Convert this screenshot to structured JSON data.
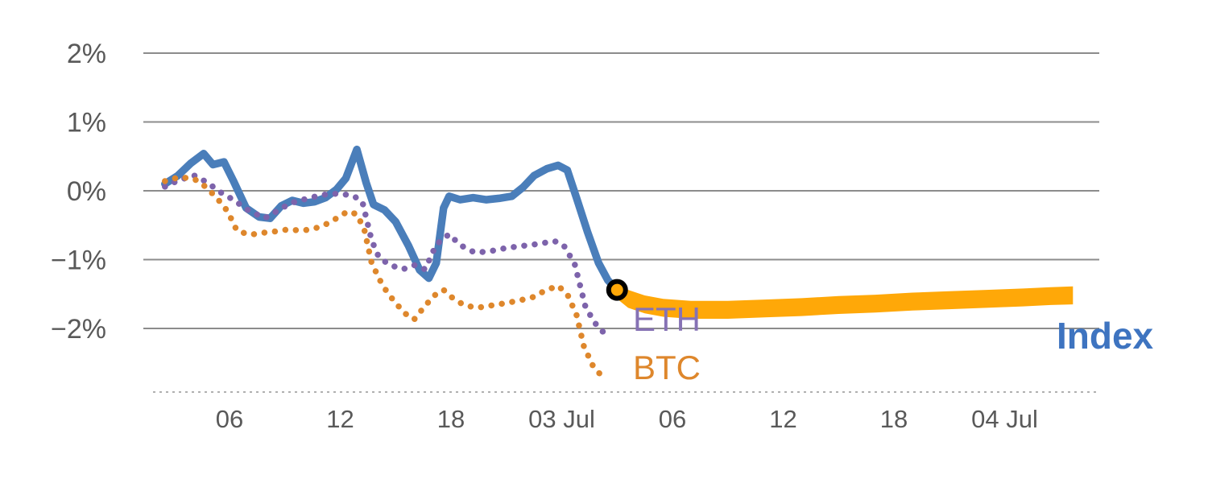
{
  "labels": {
    "eth": "ETH",
    "btc": "BTC",
    "index": "Index"
  },
  "colors": {
    "index_line": "#4a7eba",
    "index_label": "#3e74c0",
    "eth": "#7d63ab",
    "eth_label": "#8672b4",
    "btc": "#de872c",
    "forecast_band": "#ffa808",
    "grid": "#8c8c8c",
    "axis_text": "#595959",
    "bottom_axis": "#b0b0b0",
    "marker_stroke": "#000000"
  },
  "chart_data": {
    "type": "line",
    "title": "",
    "xlabel": "",
    "ylabel": "",
    "x_axis": {
      "unit": "hours",
      "range": [
        1.8,
        52.5
      ],
      "ticks": [
        {
          "value": 6,
          "label": "06"
        },
        {
          "value": 12,
          "label": "12"
        },
        {
          "value": 18,
          "label": "18"
        },
        {
          "value": 24,
          "label": "03 Jul"
        },
        {
          "value": 30,
          "label": "06"
        },
        {
          "value": 36,
          "label": "12"
        },
        {
          "value": 42,
          "label": "18"
        },
        {
          "value": 48,
          "label": "04 Jul"
        }
      ]
    },
    "y_axis": {
      "unit": "percent",
      "range": [
        -2.92,
        2.3
      ],
      "ticks": [
        {
          "value": 2,
          "label": "2%"
        },
        {
          "value": 1,
          "label": "1%"
        },
        {
          "value": 0,
          "label": "0%"
        },
        {
          "value": -1,
          "label": "−1%"
        },
        {
          "value": -2,
          "label": "−2%"
        }
      ]
    },
    "series": [
      {
        "name": "Index",
        "color": "#4a7eba",
        "style": "solid",
        "width": 9.5,
        "points": [
          [
            2.5,
            0.1
          ],
          [
            3.2,
            0.22
          ],
          [
            3.9,
            0.4
          ],
          [
            4.6,
            0.54
          ],
          [
            5.1,
            0.38
          ],
          [
            5.7,
            0.42
          ],
          [
            6.2,
            0.15
          ],
          [
            6.9,
            -0.25
          ],
          [
            7.6,
            -0.38
          ],
          [
            8.2,
            -0.4
          ],
          [
            8.8,
            -0.22
          ],
          [
            9.4,
            -0.14
          ],
          [
            10.0,
            -0.18
          ],
          [
            10.6,
            -0.16
          ],
          [
            11.2,
            -0.1
          ],
          [
            11.8,
            0.02
          ],
          [
            12.3,
            0.18
          ],
          [
            12.9,
            0.6
          ],
          [
            13.4,
            0.12
          ],
          [
            13.8,
            -0.2
          ],
          [
            14.4,
            -0.28
          ],
          [
            15.0,
            -0.45
          ],
          [
            15.7,
            -0.8
          ],
          [
            16.3,
            -1.15
          ],
          [
            16.8,
            -1.27
          ],
          [
            17.2,
            -1.05
          ],
          [
            17.6,
            -0.25
          ],
          [
            17.9,
            -0.08
          ],
          [
            18.5,
            -0.13
          ],
          [
            19.2,
            -0.1
          ],
          [
            19.9,
            -0.13
          ],
          [
            20.6,
            -0.11
          ],
          [
            21.3,
            -0.08
          ],
          [
            21.9,
            0.05
          ],
          [
            22.5,
            0.22
          ],
          [
            23.2,
            0.32
          ],
          [
            23.8,
            0.37
          ],
          [
            24.3,
            0.3
          ],
          [
            24.8,
            -0.1
          ],
          [
            25.4,
            -0.6
          ],
          [
            26.0,
            -1.05
          ],
          [
            26.5,
            -1.3
          ],
          [
            27.0,
            -1.44
          ]
        ]
      },
      {
        "name": "ETH",
        "color": "#7d63ab",
        "style": "dotted",
        "width": 7.5,
        "points": [
          [
            2.5,
            0.06
          ],
          [
            3.3,
            0.16
          ],
          [
            4.1,
            0.22
          ],
          [
            4.8,
            0.12
          ],
          [
            5.5,
            -0.02
          ],
          [
            6.2,
            -0.13
          ],
          [
            7.0,
            -0.28
          ],
          [
            7.9,
            -0.4
          ],
          [
            8.6,
            -0.29
          ],
          [
            9.3,
            -0.18
          ],
          [
            10.1,
            -0.12
          ],
          [
            11.0,
            -0.06
          ],
          [
            11.9,
            -0.04
          ],
          [
            12.7,
            -0.07
          ],
          [
            13.2,
            -0.16
          ],
          [
            13.7,
            -0.72
          ],
          [
            14.1,
            -0.97
          ],
          [
            14.7,
            -1.08
          ],
          [
            15.4,
            -1.14
          ],
          [
            16.0,
            -1.08
          ],
          [
            16.6,
            -1.14
          ],
          [
            17.2,
            -0.78
          ],
          [
            17.9,
            -0.63
          ],
          [
            18.5,
            -0.79
          ],
          [
            19.3,
            -0.9
          ],
          [
            20.1,
            -0.88
          ],
          [
            21.0,
            -0.83
          ],
          [
            21.9,
            -0.8
          ],
          [
            22.8,
            -0.77
          ],
          [
            23.6,
            -0.73
          ],
          [
            24.1,
            -0.79
          ],
          [
            24.7,
            -1.06
          ],
          [
            25.3,
            -1.7
          ],
          [
            26.0,
            -2.0
          ],
          [
            26.5,
            -2.1
          ]
        ]
      },
      {
        "name": "BTC",
        "color": "#de872c",
        "style": "dotted",
        "width": 7.5,
        "points": [
          [
            2.5,
            0.14
          ],
          [
            3.3,
            0.2
          ],
          [
            4.1,
            0.17
          ],
          [
            4.7,
            0.06
          ],
          [
            5.3,
            -0.1
          ],
          [
            5.9,
            -0.3
          ],
          [
            6.4,
            -0.58
          ],
          [
            7.1,
            -0.64
          ],
          [
            7.8,
            -0.61
          ],
          [
            8.5,
            -0.59
          ],
          [
            9.2,
            -0.56
          ],
          [
            9.9,
            -0.58
          ],
          [
            10.6,
            -0.55
          ],
          [
            11.2,
            -0.49
          ],
          [
            11.8,
            -0.4
          ],
          [
            12.4,
            -0.3
          ],
          [
            12.9,
            -0.34
          ],
          [
            13.3,
            -0.56
          ],
          [
            13.7,
            -1.05
          ],
          [
            14.3,
            -1.38
          ],
          [
            14.9,
            -1.6
          ],
          [
            15.5,
            -1.78
          ],
          [
            16.0,
            -1.87
          ],
          [
            16.6,
            -1.67
          ],
          [
            17.1,
            -1.52
          ],
          [
            17.6,
            -1.44
          ],
          [
            18.1,
            -1.56
          ],
          [
            18.7,
            -1.66
          ],
          [
            19.4,
            -1.7
          ],
          [
            20.1,
            -1.67
          ],
          [
            20.8,
            -1.64
          ],
          [
            21.6,
            -1.6
          ],
          [
            22.4,
            -1.55
          ],
          [
            23.1,
            -1.45
          ],
          [
            23.8,
            -1.38
          ],
          [
            24.3,
            -1.5
          ],
          [
            24.8,
            -1.8
          ],
          [
            25.2,
            -2.26
          ],
          [
            25.7,
            -2.55
          ],
          [
            26.1,
            -2.67
          ]
        ]
      }
    ],
    "forecast_band": {
      "name": "Index forecast",
      "color": "#ffa808",
      "half_thickness_pct": 0.13,
      "center_points": [
        [
          27.0,
          -1.44
        ],
        [
          27.6,
          -1.57
        ],
        [
          28.5,
          -1.65
        ],
        [
          29.5,
          -1.7
        ],
        [
          31.0,
          -1.73
        ],
        [
          33.0,
          -1.73
        ],
        [
          35.0,
          -1.71
        ],
        [
          37.0,
          -1.69
        ],
        [
          39.0,
          -1.66
        ],
        [
          41.0,
          -1.64
        ],
        [
          43.0,
          -1.61
        ],
        [
          45.0,
          -1.59
        ],
        [
          47.0,
          -1.57
        ],
        [
          49.0,
          -1.55
        ],
        [
          50.5,
          -1.53
        ],
        [
          51.7,
          -1.52
        ]
      ]
    },
    "marker": {
      "x": 27.0,
      "y": -1.44,
      "fill": "#ffa808",
      "stroke": "#000000",
      "radius": 10.5,
      "stroke_width": 6
    }
  }
}
